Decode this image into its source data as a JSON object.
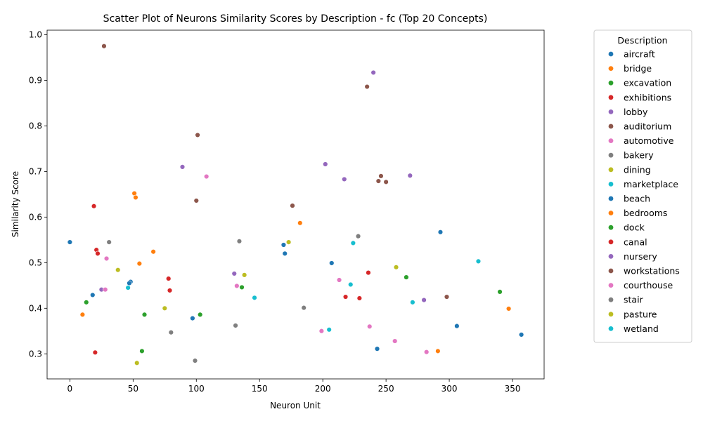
{
  "chart_data": {
    "type": "scatter",
    "title": "Scatter Plot of Neurons Similarity Scores by Description - fc (Top 20 Concepts)",
    "xlabel": "Neuron Unit",
    "ylabel": "Similarity Score",
    "xlim": [
      -18,
      375
    ],
    "ylim": [
      0.245,
      1.01
    ],
    "xticks": [
      0,
      50,
      100,
      150,
      200,
      250,
      300,
      350
    ],
    "yticks": [
      0.3,
      0.4,
      0.5,
      0.6,
      0.7,
      0.8,
      0.9,
      1.0
    ],
    "ytick_labels": [
      "0.3",
      "0.4",
      "0.5",
      "0.6",
      "0.7",
      "0.8",
      "0.9",
      "1.0"
    ],
    "grid": false,
    "legend_title": "Description",
    "legend_position": "outside-right",
    "series": [
      {
        "name": "aircraft",
        "color": "#1f77b4",
        "points": [
          [
            0,
            0.545
          ],
          [
            18,
            0.429
          ],
          [
            48,
            0.458
          ],
          [
            97,
            0.378
          ],
          [
            169,
            0.539
          ],
          [
            170,
            0.52
          ],
          [
            207,
            0.499
          ],
          [
            243,
            0.311
          ],
          [
            293,
            0.567
          ],
          [
            306,
            0.361
          ],
          [
            357,
            0.342
          ]
        ]
      },
      {
        "name": "bridge",
        "color": "#ff7f0e",
        "points": [
          [
            10,
            0.386
          ],
          [
            51,
            0.652
          ],
          [
            52,
            0.643
          ],
          [
            55,
            0.498
          ],
          [
            66,
            0.524
          ],
          [
            182,
            0.587
          ],
          [
            291,
            0.306
          ],
          [
            347,
            0.399
          ]
        ]
      },
      {
        "name": "excavation",
        "color": "#2ca02c",
        "points": [
          [
            13,
            0.413
          ],
          [
            57,
            0.306
          ],
          [
            59,
            0.386
          ],
          [
            103,
            0.386
          ],
          [
            136,
            0.446
          ],
          [
            266,
            0.468
          ],
          [
            340,
            0.436
          ]
        ]
      },
      {
        "name": "exhibitions",
        "color": "#d62728",
        "points": [
          [
            19,
            0.624
          ],
          [
            20,
            0.303
          ],
          [
            21,
            0.528
          ],
          [
            22,
            0.52
          ],
          [
            78,
            0.465
          ],
          [
            79,
            0.439
          ],
          [
            218,
            0.425
          ],
          [
            229,
            0.422
          ],
          [
            236,
            0.478
          ]
        ]
      },
      {
        "name": "lobby",
        "color": "#9467bd",
        "points": [
          [
            25,
            0.441
          ],
          [
            89,
            0.71
          ],
          [
            130,
            0.476
          ],
          [
            202,
            0.716
          ],
          [
            217,
            0.683
          ],
          [
            240,
            0.917
          ],
          [
            269,
            0.691
          ],
          [
            280,
            0.418
          ]
        ]
      },
      {
        "name": "auditorium",
        "color": "#8c564b",
        "points": [
          [
            27,
            0.975
          ],
          [
            100,
            0.636
          ],
          [
            101,
            0.78
          ],
          [
            176,
            0.625
          ],
          [
            235,
            0.886
          ],
          [
            244,
            0.679
          ],
          [
            246,
            0.69
          ],
          [
            250,
            0.677
          ],
          [
            298,
            0.425
          ]
        ]
      },
      {
        "name": "automotive",
        "color": "#e377c2",
        "points": [
          [
            28,
            0.441
          ],
          [
            29,
            0.509
          ],
          [
            108,
            0.689
          ],
          [
            132,
            0.449
          ],
          [
            199,
            0.35
          ],
          [
            213,
            0.462
          ],
          [
            237,
            0.36
          ],
          [
            257,
            0.328
          ],
          [
            282,
            0.304
          ]
        ]
      },
      {
        "name": "bakery",
        "color": "#7f7f7f",
        "points": [
          [
            31,
            0.545
          ],
          [
            80,
            0.347
          ],
          [
            99,
            0.285
          ],
          [
            131,
            0.362
          ],
          [
            134,
            0.547
          ],
          [
            185,
            0.401
          ],
          [
            228,
            0.558
          ]
        ]
      },
      {
        "name": "dining",
        "color": "#bcbd22",
        "points": [
          [
            38,
            0.484
          ],
          [
            53,
            0.28
          ],
          [
            75,
            0.4
          ],
          [
            138,
            0.473
          ],
          [
            173,
            0.545
          ],
          [
            258,
            0.49
          ]
        ]
      },
      {
        "name": "marketplace",
        "color": "#17becf",
        "points": [
          [
            46,
            0.445
          ],
          [
            146,
            0.423
          ],
          [
            205,
            0.353
          ],
          [
            222,
            0.452
          ],
          [
            224,
            0.543
          ],
          [
            271,
            0.413
          ],
          [
            323,
            0.503
          ]
        ]
      },
      {
        "name": "beach",
        "color": "#1f77b4",
        "points": [
          [
            47,
            0.455
          ]
        ]
      },
      {
        "name": "bedrooms",
        "color": "#ff7f0e",
        "points": []
      },
      {
        "name": "dock",
        "color": "#2ca02c",
        "points": []
      },
      {
        "name": "canal",
        "color": "#d62728",
        "points": []
      },
      {
        "name": "nursery",
        "color": "#9467bd",
        "points": []
      },
      {
        "name": "workstations",
        "color": "#8c564b",
        "points": []
      },
      {
        "name": "courthouse",
        "color": "#e377c2",
        "points": []
      },
      {
        "name": "stair",
        "color": "#7f7f7f",
        "points": []
      },
      {
        "name": "pasture",
        "color": "#bcbd22",
        "points": []
      },
      {
        "name": "wetland",
        "color": "#17becf",
        "points": []
      }
    ]
  }
}
